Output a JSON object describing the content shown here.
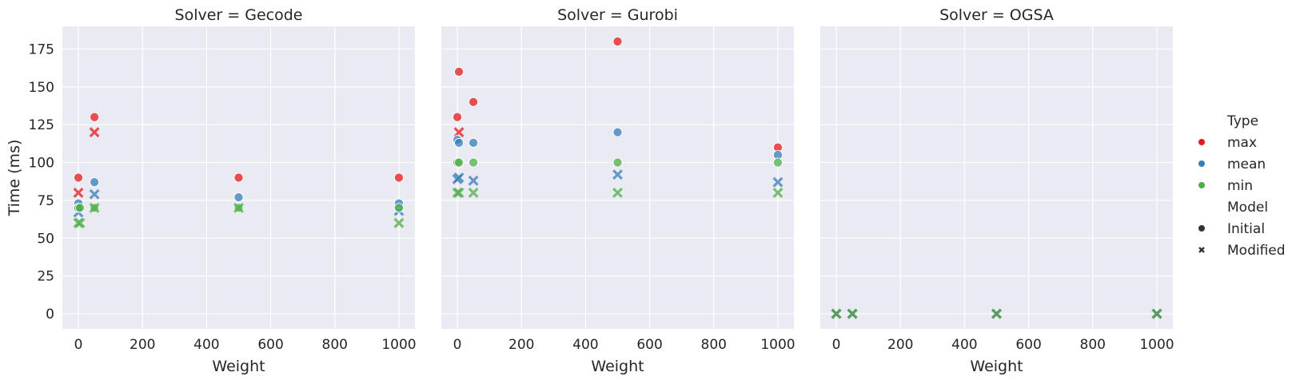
{
  "chart_data": {
    "type": "scatter",
    "xlabel": "Weight",
    "ylabel": "Time (ms)",
    "xlim": [
      -50,
      1050
    ],
    "ylim": [
      -10,
      190
    ],
    "x_ticks": [
      0,
      200,
      400,
      600,
      800,
      1000
    ],
    "y_ticks": [
      0,
      25,
      50,
      75,
      100,
      125,
      150,
      175
    ],
    "grid": true,
    "legend_position": "right",
    "type_colors": {
      "max": "#e41a1c",
      "mean": "#377eb8",
      "min": "#4daf4a"
    },
    "legend": {
      "type_title": "Type",
      "types": [
        "max",
        "mean",
        "min"
      ],
      "model_title": "Model",
      "models": [
        {
          "label": "Initial",
          "marker": "circle"
        },
        {
          "label": "Modified",
          "marker": "x"
        }
      ]
    },
    "panels": [
      {
        "title": "Solver = Gecode",
        "points": [
          {
            "x": 0,
            "y": 90,
            "type": "max",
            "model": "Initial"
          },
          {
            "x": 0,
            "y": 80,
            "type": "max",
            "model": "Modified"
          },
          {
            "x": 0,
            "y": 73,
            "type": "mean",
            "model": "Initial"
          },
          {
            "x": 0,
            "y": 70,
            "type": "mean",
            "model": "Initial"
          },
          {
            "x": 0,
            "y": 67,
            "type": "mean",
            "model": "Modified"
          },
          {
            "x": 0,
            "y": 70,
            "type": "min",
            "model": "Initial"
          },
          {
            "x": 0,
            "y": 60,
            "type": "min",
            "model": "Modified"
          },
          {
            "x": 5,
            "y": 70,
            "type": "min",
            "model": "Initial"
          },
          {
            "x": 5,
            "y": 60,
            "type": "min",
            "model": "Modified"
          },
          {
            "x": 50,
            "y": 130,
            "type": "max",
            "model": "Initial"
          },
          {
            "x": 50,
            "y": 120,
            "type": "max",
            "model": "Modified"
          },
          {
            "x": 50,
            "y": 87,
            "type": "mean",
            "model": "Initial"
          },
          {
            "x": 50,
            "y": 79,
            "type": "mean",
            "model": "Modified"
          },
          {
            "x": 50,
            "y": 70,
            "type": "min",
            "model": "Initial"
          },
          {
            "x": 50,
            "y": 70,
            "type": "min",
            "model": "Modified"
          },
          {
            "x": 500,
            "y": 90,
            "type": "max",
            "model": "Initial"
          },
          {
            "x": 500,
            "y": 77,
            "type": "mean",
            "model": "Initial"
          },
          {
            "x": 500,
            "y": 70,
            "type": "min",
            "model": "Initial"
          },
          {
            "x": 500,
            "y": 70,
            "type": "min",
            "model": "Modified"
          },
          {
            "x": 1000,
            "y": 90,
            "type": "max",
            "model": "Initial"
          },
          {
            "x": 1000,
            "y": 73,
            "type": "mean",
            "model": "Initial"
          },
          {
            "x": 1000,
            "y": 68,
            "type": "mean",
            "model": "Modified"
          },
          {
            "x": 1000,
            "y": 70,
            "type": "min",
            "model": "Initial"
          },
          {
            "x": 1000,
            "y": 60,
            "type": "min",
            "model": "Modified"
          }
        ]
      },
      {
        "title": "Solver = Gurobi",
        "points": [
          {
            "x": 0,
            "y": 130,
            "type": "max",
            "model": "Initial"
          },
          {
            "x": 5,
            "y": 160,
            "type": "max",
            "model": "Initial"
          },
          {
            "x": 5,
            "y": 120,
            "type": "max",
            "model": "Modified"
          },
          {
            "x": 0,
            "y": 115,
            "type": "mean",
            "model": "Initial"
          },
          {
            "x": 5,
            "y": 113,
            "type": "mean",
            "model": "Initial"
          },
          {
            "x": 0,
            "y": 89,
            "type": "mean",
            "model": "Modified"
          },
          {
            "x": 5,
            "y": 90,
            "type": "mean",
            "model": "Modified"
          },
          {
            "x": 0,
            "y": 100,
            "type": "min",
            "model": "Initial"
          },
          {
            "x": 5,
            "y": 100,
            "type": "min",
            "model": "Initial"
          },
          {
            "x": 0,
            "y": 80,
            "type": "min",
            "model": "Modified"
          },
          {
            "x": 5,
            "y": 80,
            "type": "min",
            "model": "Modified"
          },
          {
            "x": 50,
            "y": 140,
            "type": "max",
            "model": "Initial"
          },
          {
            "x": 50,
            "y": 113,
            "type": "mean",
            "model": "Initial"
          },
          {
            "x": 50,
            "y": 88,
            "type": "mean",
            "model": "Modified"
          },
          {
            "x": 50,
            "y": 100,
            "type": "min",
            "model": "Initial"
          },
          {
            "x": 50,
            "y": 80,
            "type": "min",
            "model": "Modified"
          },
          {
            "x": 500,
            "y": 180,
            "type": "max",
            "model": "Initial"
          },
          {
            "x": 500,
            "y": 120,
            "type": "mean",
            "model": "Initial"
          },
          {
            "x": 500,
            "y": 92,
            "type": "mean",
            "model": "Modified"
          },
          {
            "x": 500,
            "y": 100,
            "type": "min",
            "model": "Initial"
          },
          {
            "x": 500,
            "y": 80,
            "type": "min",
            "model": "Modified"
          },
          {
            "x": 1000,
            "y": 110,
            "type": "max",
            "model": "Initial"
          },
          {
            "x": 1000,
            "y": 105,
            "type": "mean",
            "model": "Initial"
          },
          {
            "x": 1000,
            "y": 87,
            "type": "mean",
            "model": "Modified"
          },
          {
            "x": 1000,
            "y": 100,
            "type": "min",
            "model": "Initial"
          },
          {
            "x": 1000,
            "y": 80,
            "type": "min",
            "model": "Modified"
          }
        ]
      },
      {
        "title": "Solver = OGSA",
        "points": [
          {
            "x": 0,
            "y": 0,
            "type": "max",
            "model": "Modified"
          },
          {
            "x": 0,
            "y": 0,
            "type": "mean",
            "model": "Modified"
          },
          {
            "x": 0,
            "y": 0,
            "type": "min",
            "model": "Modified"
          },
          {
            "x": 50,
            "y": 0,
            "type": "max",
            "model": "Modified"
          },
          {
            "x": 50,
            "y": 0,
            "type": "mean",
            "model": "Modified"
          },
          {
            "x": 50,
            "y": 0,
            "type": "min",
            "model": "Modified"
          },
          {
            "x": 500,
            "y": 0,
            "type": "max",
            "model": "Modified"
          },
          {
            "x": 500,
            "y": 0,
            "type": "mean",
            "model": "Modified"
          },
          {
            "x": 500,
            "y": 0,
            "type": "min",
            "model": "Modified"
          },
          {
            "x": 1000,
            "y": 0,
            "type": "max",
            "model": "Modified"
          },
          {
            "x": 1000,
            "y": 0,
            "type": "mean",
            "model": "Modified"
          },
          {
            "x": 1000,
            "y": 0,
            "type": "min",
            "model": "Modified"
          }
        ]
      }
    ]
  }
}
